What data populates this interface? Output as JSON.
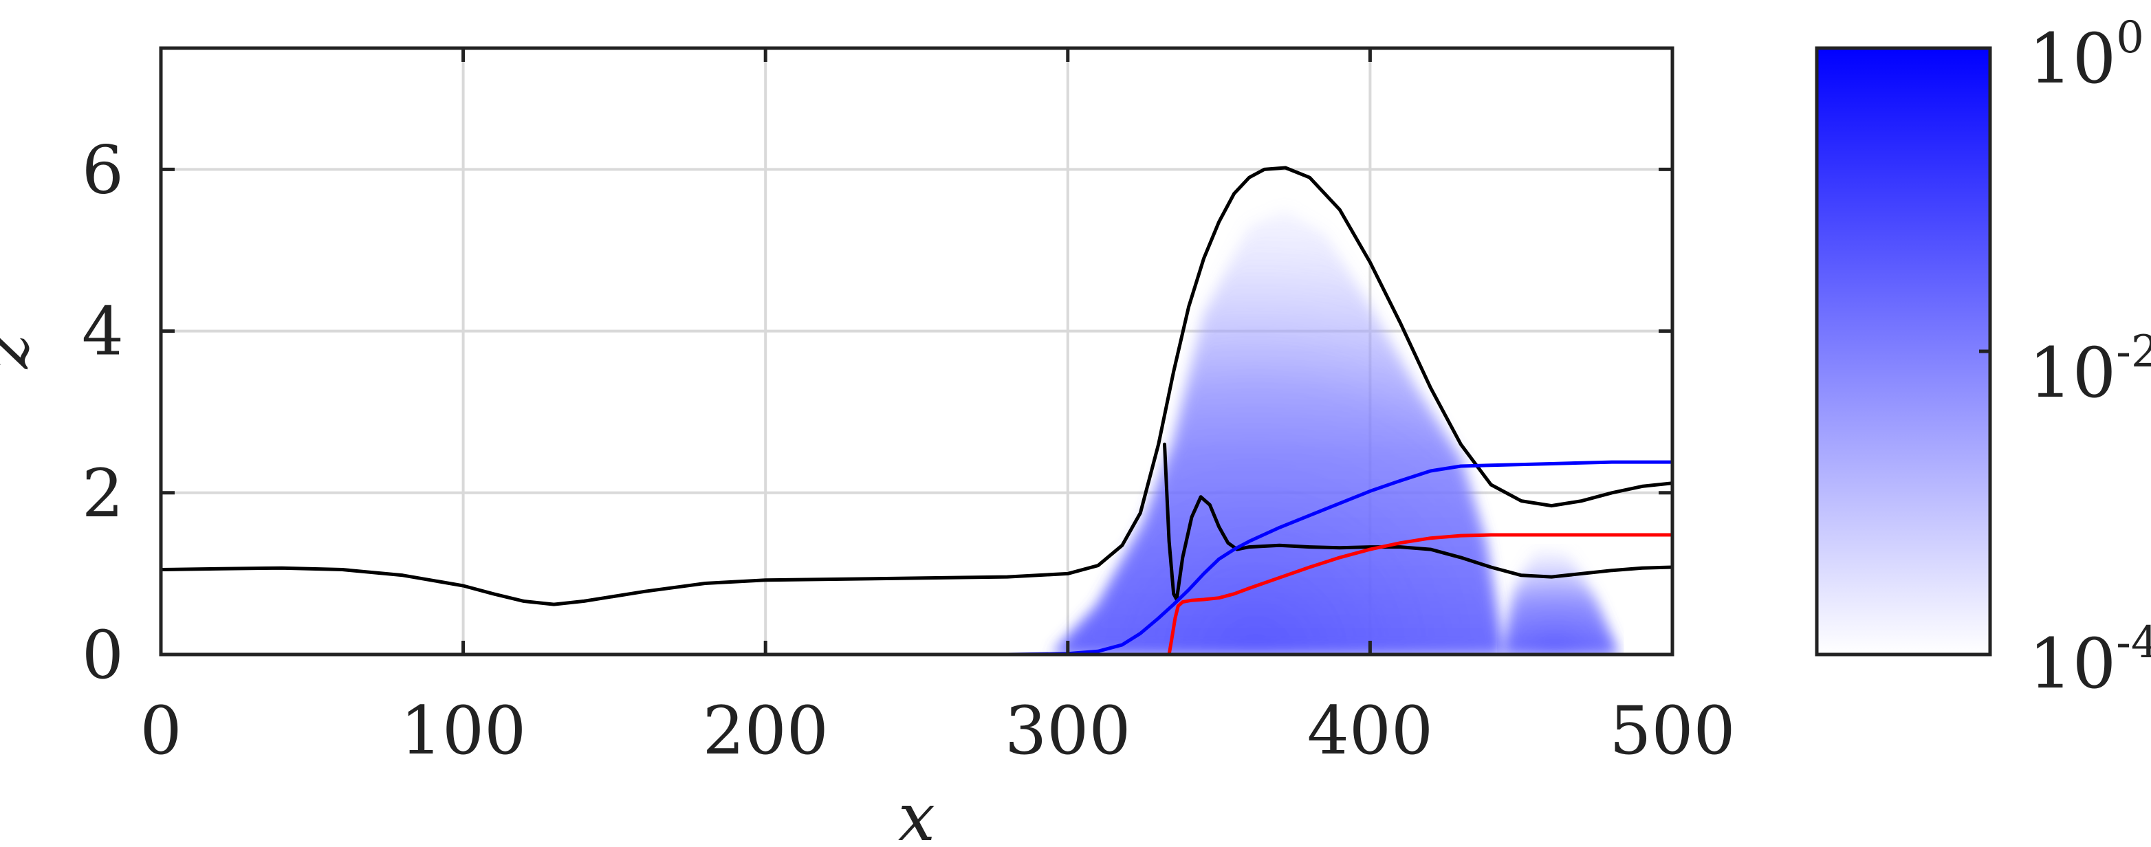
{
  "chart_data": {
    "type": "line",
    "xlabel": "x",
    "ylabel": "z",
    "xlim": [
      0,
      500
    ],
    "ylim": [
      0,
      7.5
    ],
    "xticks": [
      0,
      100,
      200,
      300,
      400,
      500
    ],
    "yticks": [
      0,
      2,
      4,
      6
    ],
    "grid": true,
    "colorbar": {
      "scale": "log",
      "min_label": {
        "base": "10",
        "exponent": "-4"
      },
      "mid_label": {
        "base": "10",
        "exponent": "-2"
      },
      "max_label": {
        "base": "10",
        "exponent": "0"
      },
      "color_low": "#ffffff",
      "color_high": "#0000ff"
    },
    "field": {
      "description_color": "#0000ff",
      "lobes": [
        {
          "x_start": 295,
          "x_end": 444,
          "z_top": [
            [
              295,
              0
            ],
            [
              310,
              0.6
            ],
            [
              325,
              1.6
            ],
            [
              335,
              2.6
            ],
            [
              345,
              4.2
            ],
            [
              360,
              5.3
            ],
            [
              372,
              5.5
            ],
            [
              385,
              5.2
            ],
            [
              400,
              4.3
            ],
            [
              415,
              3.3
            ],
            [
              430,
              2.4
            ],
            [
              438,
              1.4
            ],
            [
              444,
              0
            ]
          ]
        },
        {
          "x_start": 444,
          "x_end": 482,
          "z_top": [
            [
              444,
              0
            ],
            [
              448,
              0.8
            ],
            [
              455,
              1.3
            ],
            [
              465,
              1.25
            ],
            [
              474,
              0.7
            ],
            [
              482,
              0
            ]
          ]
        }
      ]
    },
    "series": [
      {
        "color": "#000000",
        "x": [
          0,
          20,
          40,
          60,
          80,
          100,
          110,
          120,
          130,
          140,
          160,
          180,
          200,
          240,
          280,
          300,
          310,
          318,
          324,
          330,
          335,
          340,
          345,
          350,
          355,
          360,
          365,
          372,
          380,
          390,
          400,
          410,
          420,
          430,
          440,
          450,
          460,
          470,
          480,
          490,
          500
        ],
        "y": [
          1.05,
          1.06,
          1.07,
          1.05,
          0.98,
          0.85,
          0.75,
          0.66,
          0.62,
          0.66,
          0.78,
          0.88,
          0.92,
          0.94,
          0.96,
          1.0,
          1.1,
          1.35,
          1.75,
          2.6,
          3.5,
          4.3,
          4.9,
          5.35,
          5.7,
          5.9,
          6.0,
          6.02,
          5.9,
          5.5,
          4.85,
          4.1,
          3.3,
          2.6,
          2.1,
          1.9,
          1.84,
          1.9,
          2.0,
          2.08,
          2.12
        ]
      },
      {
        "color": "#000000",
        "x": [
          332,
          333.5,
          335,
          336,
          338,
          341,
          344,
          347,
          350,
          353,
          356,
          360,
          370,
          380,
          390,
          400,
          410,
          420,
          430,
          440,
          450,
          460,
          470,
          480,
          490,
          500
        ],
        "y": [
          2.6,
          1.4,
          0.75,
          0.68,
          1.2,
          1.7,
          1.95,
          1.85,
          1.58,
          1.38,
          1.3,
          1.33,
          1.35,
          1.33,
          1.32,
          1.33,
          1.33,
          1.3,
          1.2,
          1.08,
          0.98,
          0.96,
          1.0,
          1.04,
          1.07,
          1.08
        ]
      },
      {
        "color": "#0000ff",
        "x": [
          0,
          100,
          200,
          280,
          300,
          310,
          318,
          324,
          330,
          335,
          340,
          345,
          350,
          355,
          360,
          370,
          380,
          390,
          400,
          410,
          420,
          430,
          440,
          450,
          460,
          470,
          480,
          490,
          500
        ],
        "y": [
          0,
          0,
          0,
          0,
          0.01,
          0.04,
          0.12,
          0.26,
          0.45,
          0.62,
          0.8,
          1.0,
          1.18,
          1.3,
          1.4,
          1.57,
          1.72,
          1.87,
          2.02,
          2.15,
          2.27,
          2.33,
          2.34,
          2.35,
          2.36,
          2.37,
          2.38,
          2.38,
          2.38
        ]
      },
      {
        "color": "#ff0000",
        "x": [
          333.5,
          334.5,
          335.5,
          336.5,
          338,
          341,
          345,
          350,
          355,
          360,
          370,
          380,
          390,
          400,
          410,
          420,
          430,
          440,
          450,
          460,
          470,
          480,
          490,
          500
        ],
        "y": [
          0,
          0.22,
          0.45,
          0.6,
          0.65,
          0.67,
          0.68,
          0.7,
          0.75,
          0.82,
          0.95,
          1.08,
          1.2,
          1.3,
          1.38,
          1.44,
          1.47,
          1.48,
          1.48,
          1.48,
          1.48,
          1.48,
          1.48,
          1.48
        ]
      }
    ]
  }
}
